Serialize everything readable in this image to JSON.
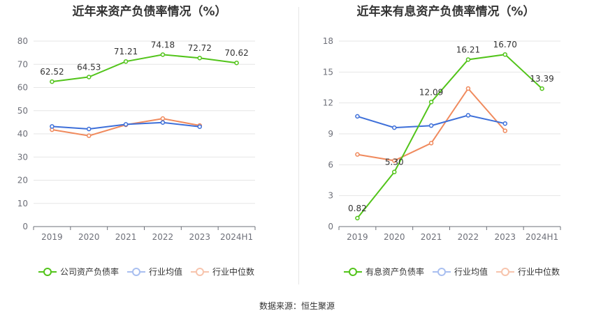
{
  "source_label": "数据来源：恒生聚源",
  "chart_data": [
    {
      "type": "line",
      "title": "近年来资产负债率情况（%）",
      "categories": [
        "2019",
        "2020",
        "2021",
        "2022",
        "2023",
        "2024H1"
      ],
      "ylim": [
        0,
        80
      ],
      "yticks": [
        0,
        10,
        20,
        30,
        40,
        50,
        60,
        70,
        80
      ],
      "grid": true,
      "legend_position": "bottom",
      "series": [
        {
          "name": "公司资产负债率",
          "color": "#52c41a",
          "values": [
            62.52,
            64.53,
            71.21,
            74.18,
            72.72,
            70.62
          ],
          "labels": [
            "62.52",
            "64.53",
            "71.21",
            "74.18",
            "72.72",
            "70.62"
          ]
        },
        {
          "name": "行业均值",
          "color": "#3d6fd9",
          "values": [
            43.2,
            42.1,
            44.1,
            44.9,
            43.1,
            null
          ]
        },
        {
          "name": "行业中位数",
          "color": "#f08a5d",
          "values": [
            41.8,
            39.2,
            43.9,
            46.6,
            43.6,
            null
          ]
        }
      ]
    },
    {
      "type": "line",
      "title": "近年来有息资产负债率情况（%）",
      "categories": [
        "2019",
        "2020",
        "2021",
        "2022",
        "2023",
        "2024H1"
      ],
      "ylim": [
        0,
        18
      ],
      "yticks": [
        0,
        3,
        6,
        9,
        12,
        15,
        18
      ],
      "grid": true,
      "legend_position": "bottom",
      "series": [
        {
          "name": "有息资产负债率",
          "color": "#52c41a",
          "values": [
            0.82,
            5.3,
            12.09,
            16.21,
            16.7,
            13.39
          ],
          "labels": [
            "0.82",
            "5.30",
            "12.09",
            "16.21",
            "16.70",
            "13.39"
          ]
        },
        {
          "name": "行业均值",
          "color": "#3d6fd9",
          "values": [
            10.7,
            9.6,
            9.8,
            10.8,
            10.0,
            null
          ]
        },
        {
          "name": "行业中位数",
          "color": "#f08a5d",
          "values": [
            7.0,
            6.4,
            8.1,
            13.4,
            9.3,
            null
          ]
        }
      ]
    }
  ]
}
